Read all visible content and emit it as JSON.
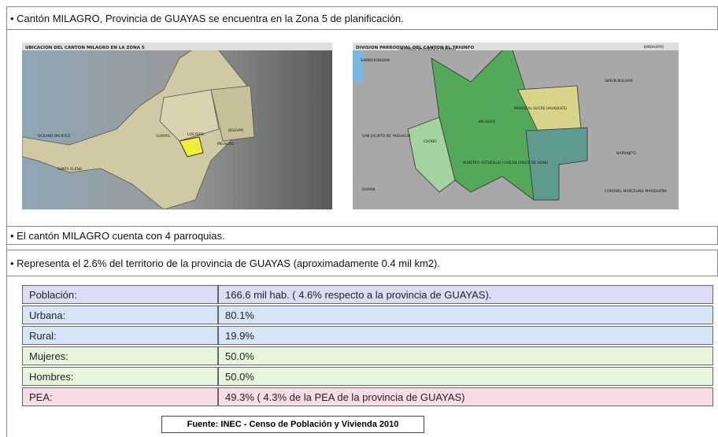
{
  "items": [
    "• Cantón MILAGRO, Provincia de GUAYAS se encuentra en la Zona 5 de planificación.",
    "• El cantón MILAGRO cuenta con 4 parroquias.",
    "• Representa el 2.6% del territorio de la provincia de GUAYAS (aproximadamente 0.4 mil km2)."
  ],
  "maps": [
    {
      "title": "UBICACION DEL CANTON MILAGRO EN LA ZONA 5",
      "labels": [
        "LOS RIOS",
        "BOLIVAR",
        "GUAYAS",
        "SANTA ELENA",
        "MILAGRO",
        "OCEANO PACIFICO"
      ]
    },
    {
      "title": "DIVISION PARROQUIAL DEL CANTON EL TRIUNFO",
      "labels": [
        "SAMBORONDON",
        "ALFREDO BAQUERIZO MORENO",
        "BABAHOYO",
        "SIMON BOLIVAR",
        "MARISCAL SUCRE (HUAQUES)",
        "MILAGRO",
        "SAN JACINTO DE YAGUACHI",
        "CHOBO",
        "ROBERTO ASTUDILLO (CAB.EN CRUCE DE VENE)",
        "NARANJITO",
        "DURAN",
        "CORONEL MARCELINO MARIDUEÑA"
      ]
    }
  ],
  "table": {
    "rows": [
      [
        "Población:",
        "166.6 mil hab. ( 4.6% respecto a la provincia de GUAYAS)."
      ],
      [
        "Urbana:",
        "80.1%"
      ],
      [
        "Rural:",
        "19.9%"
      ],
      [
        "Mujeres:",
        "50.0%"
      ],
      [
        "Hombres:",
        "50.0%"
      ],
      [
        "PEA:",
        "49.3% ( 4.3% de la PEA de la provincia de GUAYAS)"
      ]
    ]
  },
  "source": "Fuente: INEC -  Censo de Población y Vivienda  2010"
}
